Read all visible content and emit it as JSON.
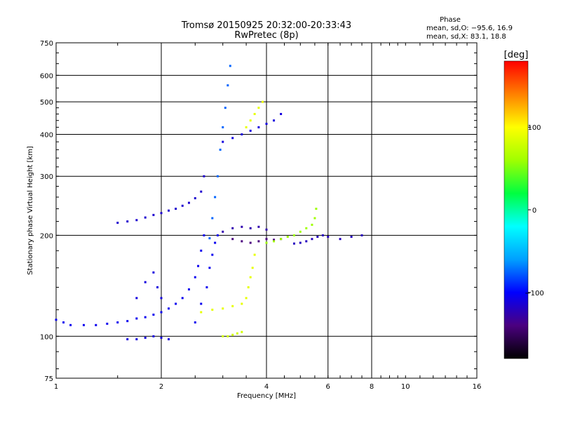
{
  "chart_data": {
    "type": "scatter",
    "title": "Tromsø 20150925 20:32:00-20:33:43",
    "subtitle": "RwPretec (8p)",
    "xlabel": "Frequency [MHz]",
    "ylabel": "Stationary phase Virtual Height [km]",
    "x_scale": "log",
    "y_scale": "log",
    "xlim": [
      1,
      16
    ],
    "ylim": [
      75,
      750
    ],
    "x_ticks": [
      1,
      2,
      4,
      6,
      8,
      10,
      16
    ],
    "x_tick_labels": [
      "1",
      "2",
      "4",
      "6",
      "8",
      "10",
      "16"
    ],
    "x_gridlines": [
      2,
      4,
      6,
      8
    ],
    "y_ticks": [
      75,
      100,
      200,
      300,
      400,
      500,
      600,
      750
    ],
    "y_tick_labels": [
      "75",
      "100",
      "200",
      "300",
      "400",
      "500",
      "600",
      "750"
    ],
    "y_gridlines": [
      100,
      200,
      300,
      400,
      500,
      600
    ],
    "grid": true,
    "phase_stats": {
      "header": "Phase",
      "line_O": "mean, sd,O: −95.6, 16.9",
      "line_X": "mean, sd,X:  83.1, 18.8"
    },
    "colorbar": {
      "label": "[deg]",
      "range": [
        -180,
        180
      ],
      "ticks": [
        100,
        0,
        -100
      ],
      "tick_labels": [
        "100",
        "0",
        "−100"
      ],
      "colormap": [
        "#000000",
        "#4b007f",
        "#0000ff",
        "#00a0ff",
        "#00ffff",
        "#00ff40",
        "#a0ff00",
        "#ffff00",
        "#ff8000",
        "#ff0000"
      ]
    },
    "traces": [
      {
        "name": "",
        "phase": -105,
        "points": [
          [
            1.0,
            112
          ],
          [
            1.05,
            110
          ],
          [
            1.1,
            108
          ],
          [
            1.2,
            108
          ],
          [
            1.3,
            108
          ],
          [
            1.4,
            109
          ],
          [
            1.5,
            110
          ],
          [
            1.6,
            111
          ],
          [
            1.7,
            113
          ],
          [
            1.8,
            114
          ],
          [
            1.9,
            116
          ],
          [
            2.0,
            118
          ],
          [
            2.1,
            121
          ],
          [
            2.2,
            125
          ],
          [
            2.3,
            130
          ],
          [
            2.4,
            138
          ],
          [
            2.5,
            150
          ],
          [
            2.55,
            162
          ],
          [
            2.6,
            180
          ],
          [
            2.65,
            200
          ]
        ]
      },
      {
        "name": "",
        "phase": -110,
        "points": [
          [
            1.6,
            98
          ],
          [
            1.7,
            98
          ],
          [
            1.8,
            99
          ],
          [
            1.9,
            100
          ],
          [
            2.0,
            99
          ],
          [
            2.1,
            98
          ]
        ]
      },
      {
        "name": "",
        "phase": -110,
        "points": [
          [
            1.7,
            130
          ],
          [
            1.8,
            145
          ],
          [
            1.9,
            155
          ],
          [
            1.95,
            140
          ],
          [
            2.0,
            130
          ]
        ]
      },
      {
        "name": "",
        "phase": -115,
        "points": [
          [
            1.5,
            218
          ],
          [
            1.6,
            220
          ],
          [
            1.7,
            222
          ],
          [
            1.8,
            226
          ],
          [
            1.9,
            230
          ],
          [
            2.0,
            233
          ],
          [
            2.1,
            237
          ],
          [
            2.2,
            240
          ],
          [
            2.3,
            245
          ],
          [
            2.4,
            250
          ],
          [
            2.5,
            258
          ],
          [
            2.6,
            270
          ],
          [
            2.65,
            300
          ]
        ]
      },
      {
        "name": "",
        "phase": -105,
        "points": [
          [
            2.5,
            110
          ],
          [
            2.6,
            125
          ],
          [
            2.7,
            140
          ],
          [
            2.75,
            160
          ],
          [
            2.8,
            175
          ],
          [
            2.85,
            190
          ],
          [
            2.9,
            200
          ]
        ]
      },
      {
        "name": "",
        "phase": -75,
        "points": [
          [
            2.75,
            196
          ],
          [
            2.8,
            225
          ],
          [
            2.85,
            260
          ],
          [
            2.9,
            300
          ],
          [
            2.95,
            360
          ],
          [
            3.0,
            420
          ],
          [
            3.05,
            480
          ],
          [
            3.1,
            560
          ],
          [
            3.15,
            640
          ]
        ]
      },
      {
        "name": "",
        "phase": -110,
        "points": [
          [
            3.0,
            380
          ],
          [
            3.2,
            390
          ],
          [
            3.4,
            400
          ],
          [
            3.6,
            410
          ],
          [
            3.8,
            420
          ],
          [
            4.0,
            430
          ],
          [
            4.2,
            440
          ],
          [
            4.4,
            460
          ]
        ]
      },
      {
        "name": "",
        "phase": -140,
        "points": [
          [
            3.2,
            195
          ],
          [
            3.4,
            192
          ],
          [
            3.6,
            190
          ],
          [
            3.8,
            192
          ],
          [
            4.0,
            195
          ],
          [
            4.2,
            194
          ],
          [
            4.4,
            195
          ]
        ]
      },
      {
        "name": "",
        "phase": -125,
        "points": [
          [
            3.0,
            205
          ],
          [
            3.2,
            210
          ],
          [
            3.4,
            212
          ],
          [
            3.6,
            210
          ],
          [
            3.8,
            212
          ],
          [
            4.0,
            208
          ]
        ]
      },
      {
        "name": "",
        "phase": 90,
        "points": [
          [
            2.6,
            118
          ],
          [
            2.8,
            120
          ],
          [
            3.0,
            121
          ],
          [
            3.2,
            123
          ],
          [
            3.4,
            125
          ],
          [
            3.5,
            130
          ],
          [
            3.55,
            140
          ],
          [
            3.6,
            150
          ],
          [
            3.65,
            160
          ],
          [
            3.7,
            175
          ]
        ]
      },
      {
        "name": "",
        "phase": 90,
        "points": [
          [
            3.5,
            420
          ],
          [
            3.6,
            440
          ],
          [
            3.7,
            460
          ],
          [
            3.8,
            480
          ],
          [
            3.9,
            500
          ]
        ]
      },
      {
        "name": "",
        "phase": 60,
        "points": [
          [
            4.0,
            190
          ],
          [
            4.2,
            192
          ],
          [
            4.4,
            195
          ],
          [
            4.6,
            198
          ],
          [
            4.8,
            200
          ],
          [
            5.0,
            205
          ],
          [
            5.2,
            210
          ],
          [
            5.4,
            215
          ],
          [
            5.5,
            225
          ],
          [
            5.55,
            240
          ]
        ]
      },
      {
        "name": "",
        "phase": -120,
        "points": [
          [
            4.8,
            189
          ],
          [
            5.0,
            190
          ],
          [
            5.2,
            192
          ],
          [
            5.4,
            195
          ],
          [
            5.6,
            198
          ],
          [
            5.8,
            200
          ],
          [
            6.0,
            198
          ],
          [
            6.5,
            195
          ],
          [
            7.0,
            198
          ],
          [
            7.5,
            200
          ]
        ]
      },
      {
        "name": "",
        "phase": 80,
        "points": [
          [
            3.0,
            100
          ],
          [
            3.1,
            100
          ],
          [
            3.2,
            101
          ],
          [
            3.3,
            102
          ],
          [
            3.4,
            103
          ]
        ]
      }
    ]
  }
}
